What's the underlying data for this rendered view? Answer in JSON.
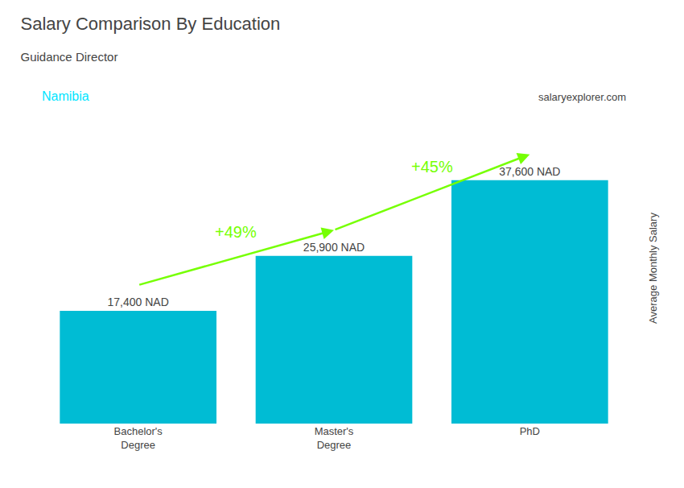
{
  "chart_data": {
    "type": "bar",
    "title": "Salary Comparison By Education",
    "subtitle": "Guidance Director",
    "ylabel": "Average Monthly Salary",
    "categories": [
      "Bachelor's\nDegree",
      "Master's\nDegree",
      "PhD"
    ],
    "values": [
      17400,
      25900,
      37600
    ],
    "value_labels": [
      "17,400 NAD",
      "25,900 NAD",
      "37,600 NAD"
    ],
    "data_labels": true,
    "color": "#00bcd4",
    "ylim": [
      0,
      48000
    ],
    "tick_labels": "x",
    "grid": false,
    "annotations": [
      {
        "text": "Namibia",
        "color": "#00e5ff"
      },
      {
        "text": "salaryexplorer.com"
      },
      {
        "text": "+49%",
        "from": 0,
        "to": 1,
        "color": "#76ff03"
      },
      {
        "text": "+45%",
        "from": 1,
        "to": 2,
        "color": "#76ff03"
      }
    ]
  }
}
